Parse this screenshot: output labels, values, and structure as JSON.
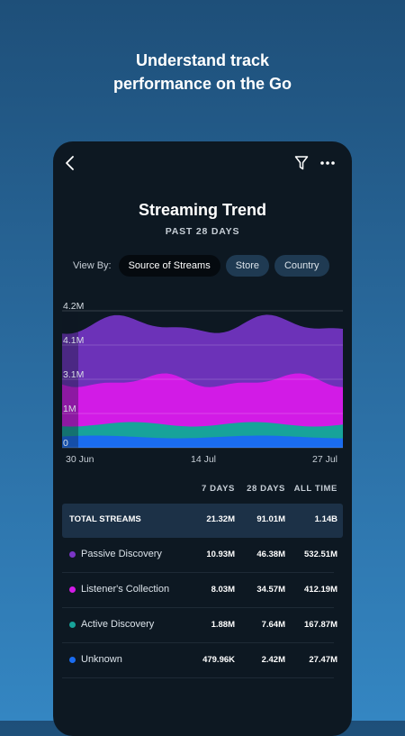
{
  "headline": {
    "line1": "Understand track",
    "line2": "performance on the Go"
  },
  "screen": {
    "title": "Streaming Trend",
    "subtitle": "PAST 28 DAYS",
    "view_by": {
      "label": "View By:",
      "options": [
        "Source of Streams",
        "Store",
        "Country"
      ],
      "selected": "Source of Streams"
    }
  },
  "chart_data": {
    "type": "area",
    "y_ticks": [
      "4.2M",
      "4.1M",
      "3.1M",
      "1M",
      "0"
    ],
    "x_ticks": [
      "30 Jun",
      "14 Jul",
      "27 Jul"
    ],
    "series": [
      {
        "name": "Unknown",
        "color": "#1a6cf0"
      },
      {
        "name": "Active Discovery",
        "color": "#17a39a"
      },
      {
        "name": "Listener's Collection",
        "color": "#d21be6"
      },
      {
        "name": "Passive Discovery",
        "color": "#6c32b8"
      }
    ],
    "stacked": true,
    "grid": true
  },
  "table": {
    "columns": [
      "7 DAYS",
      "28 DAYS",
      "ALL TIME"
    ],
    "total": {
      "label": "TOTAL STREAMS",
      "values": [
        "21.32M",
        "91.01M",
        "1.14B"
      ]
    },
    "rows": [
      {
        "label": "Passive Discovery",
        "color": "#7a35c6",
        "values": [
          "10.93M",
          "46.38M",
          "532.51M"
        ]
      },
      {
        "label": "Listener's Collection",
        "color": "#d21be6",
        "values": [
          "8.03M",
          "34.57M",
          "412.19M"
        ]
      },
      {
        "label": "Active Discovery",
        "color": "#17a39a",
        "values": [
          "1.88M",
          "7.64M",
          "167.87M"
        ]
      },
      {
        "label": "Unknown",
        "color": "#1a6cf0",
        "values": [
          "479.96K",
          "2.42M",
          "27.47M"
        ]
      }
    ]
  }
}
